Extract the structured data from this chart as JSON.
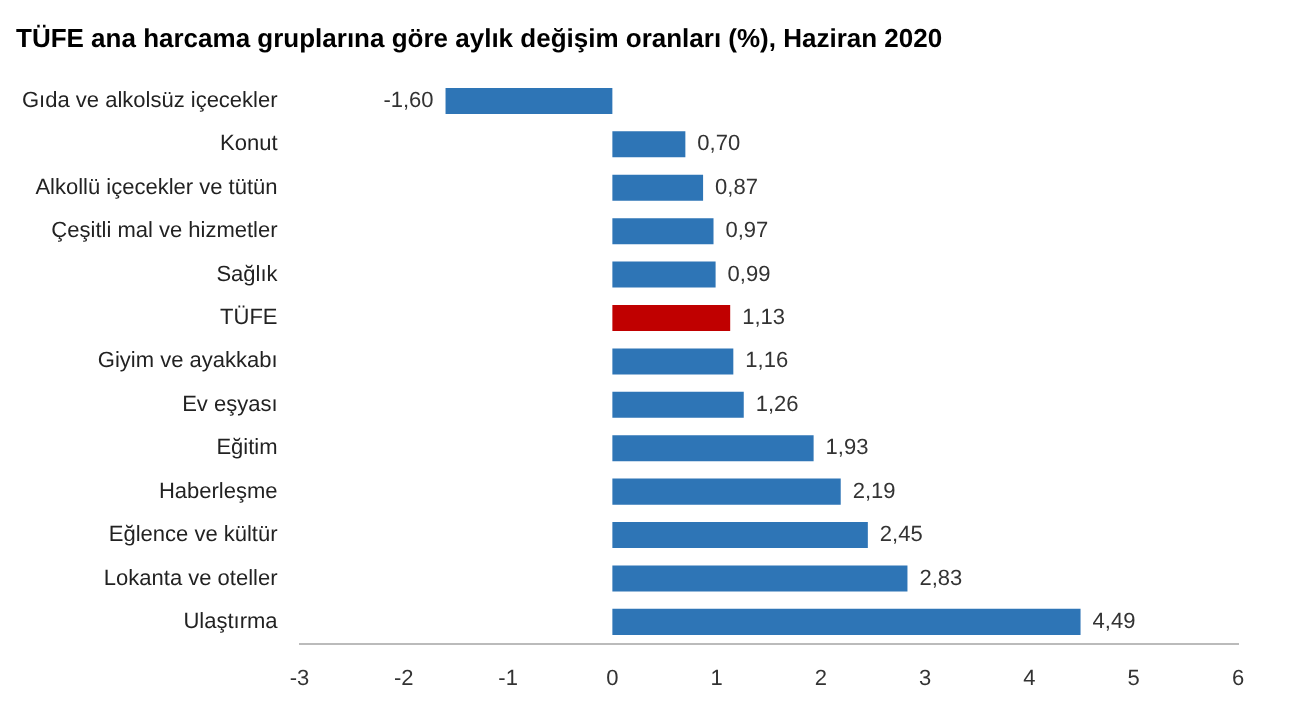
{
  "chart_data": {
    "type": "bar",
    "orientation": "horizontal",
    "title": "TÜFE ana harcama gruplarına göre aylık değişim oranları (%), Haziran 2020",
    "categories": [
      "Gıda ve alkolsüz içecekler",
      "Konut",
      "Alkollü içecekler ve tütün",
      "Çeşitli mal ve hizmetler",
      "Sağlık",
      "TÜFE",
      "Giyim ve ayakkabı",
      "Ev eşyası",
      "Eğitim",
      "Haberleşme",
      "Eğlence ve kültür",
      "Lokanta ve oteller",
      "Ulaştırma"
    ],
    "values": [
      -1.6,
      0.7,
      0.87,
      0.97,
      0.99,
      1.13,
      1.16,
      1.26,
      1.93,
      2.19,
      2.45,
      2.83,
      4.49
    ],
    "value_labels": [
      "-1,60",
      "0,70",
      "0,87",
      "0,97",
      "0,99",
      "1,13",
      "1,16",
      "1,26",
      "1,93",
      "2,19",
      "2,45",
      "2,83",
      "4,49"
    ],
    "colors": [
      "#2e75b6",
      "#2e75b6",
      "#2e75b6",
      "#2e75b6",
      "#2e75b6",
      "#c00000",
      "#2e75b6",
      "#2e75b6",
      "#2e75b6",
      "#2e75b6",
      "#2e75b6",
      "#2e75b6",
      "#2e75b6"
    ],
    "xlim": [
      -3,
      6
    ],
    "xticks": [
      -3,
      -2,
      -1,
      0,
      1,
      2,
      3,
      4,
      5,
      6
    ],
    "grid": false,
    "legend": false
  }
}
